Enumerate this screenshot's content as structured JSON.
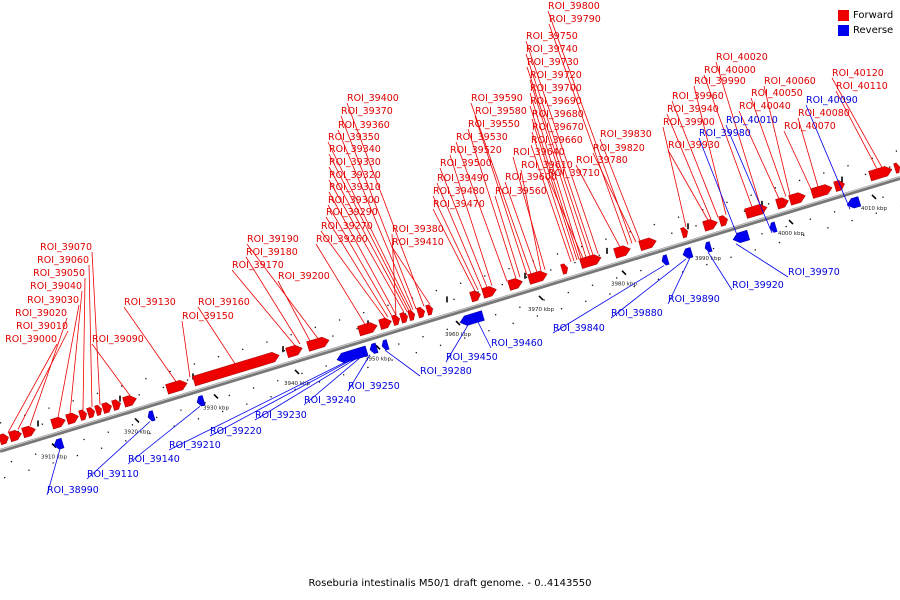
{
  "legend": {
    "forward_label": "Forward",
    "reverse_label": "Reverse",
    "forward_color": "#ee0000",
    "reverse_color": "#0000ee"
  },
  "caption": "Roseburia intestinalis M50/1 draft genome. - 0..4143550",
  "scale_labels": [
    "3910 kbp",
    "3920 kbp",
    "3930 kbp",
    "3940 kbp",
    "3950 kbp",
    "3960 kbp",
    "3970 kbp",
    "3980 kbp",
    "3990 kbp",
    "4000 kbp",
    "4010 kbp"
  ],
  "forward_labels": [
    "ROI_39000",
    "ROI_39010",
    "ROI_39020",
    "ROI_39030",
    "ROI_39040",
    "ROI_39050",
    "ROI_39060",
    "ROI_39070",
    "ROI_39090",
    "ROI_39130",
    "ROI_39150",
    "ROI_39160",
    "ROI_39170",
    "ROI_39180",
    "ROI_39190",
    "ROI_39200",
    "ROI_39260",
    "ROI_39270",
    "ROI_39290",
    "ROI_39300",
    "ROI_39310",
    "ROI_39320",
    "ROI_39330",
    "ROI_39340",
    "ROI_39350",
    "ROI_39360",
    "ROI_39370",
    "ROI_39380",
    "ROI_39400",
    "ROI_39410",
    "ROI_39470",
    "ROI_39480",
    "ROI_39490",
    "ROI_39500",
    "ROI_39520",
    "ROI_39530",
    "ROI_39550",
    "ROI_39560",
    "ROI_39580",
    "ROI_39590",
    "ROI_39600",
    "ROI_39610",
    "ROI_39640",
    "ROI_39660",
    "ROI_39670",
    "ROI_39680",
    "ROI_39690",
    "ROI_39700",
    "ROI_39710",
    "ROI_39720",
    "ROI_39730",
    "ROI_39740",
    "ROI_39750",
    "ROI_39780",
    "ROI_39790",
    "ROI_39800",
    "ROI_39820",
    "ROI_39830",
    "ROI_39900",
    "ROI_39930",
    "ROI_39940",
    "ROI_39960",
    "ROI_39990",
    "ROI_40000",
    "ROI_40020",
    "ROI_40040",
    "ROI_40050",
    "ROI_40060",
    "ROI_40070",
    "ROI_40080",
    "ROI_40110",
    "ROI_40120"
  ],
  "reverse_labels": [
    "ROI_38990",
    "ROI_39110",
    "ROI_39140",
    "ROI_39210",
    "ROI_39220",
    "ROI_39230",
    "ROI_39240",
    "ROI_39250",
    "ROI_39280",
    "ROI_39450",
    "ROI_39460",
    "ROI_39840",
    "ROI_39880",
    "ROI_39890",
    "ROI_39920",
    "ROI_39970",
    "ROI_39980",
    "ROI_40010",
    "ROI_40090"
  ]
}
